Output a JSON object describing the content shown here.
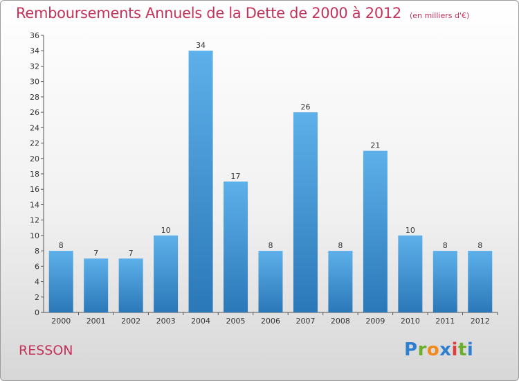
{
  "header": {
    "title": "Remboursements Annuels de la Dette de 2000 à 2012",
    "unit": "(en milliers d'€)"
  },
  "footer": {
    "commune": "RESSON",
    "logo": {
      "p": "P",
      "r": "r",
      "o": "o",
      "x": "x",
      "i1": "i",
      "t": "t",
      "i2": "i"
    }
  },
  "colors": {
    "title": "#c4325a",
    "bar_top": "#5db0ea",
    "bar_bottom": "#2b78b8",
    "logo": [
      "#2f7fd0",
      "#6aae2b",
      "#f08a1c",
      "#2f7fd0",
      "#e23b3b",
      "#6aae2b",
      "#2f7fd0"
    ]
  },
  "chart_data": {
    "type": "bar",
    "categories": [
      "2000",
      "2001",
      "2002",
      "2003",
      "2004",
      "2005",
      "2006",
      "2007",
      "2008",
      "2009",
      "2010",
      "2011",
      "2012"
    ],
    "values": [
      8,
      7,
      7,
      10,
      34,
      17,
      8,
      26,
      8,
      21,
      10,
      8,
      8
    ],
    "ylim": [
      0,
      36
    ],
    "yticks": [
      0,
      2,
      4,
      6,
      8,
      10,
      12,
      14,
      16,
      18,
      20,
      22,
      24,
      26,
      28,
      30,
      32,
      34,
      36
    ],
    "grid": false
  }
}
